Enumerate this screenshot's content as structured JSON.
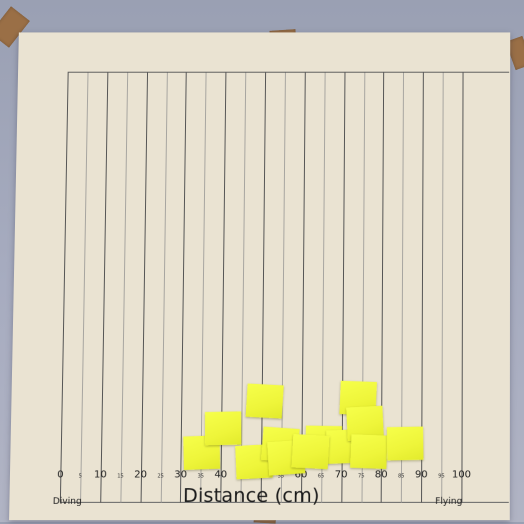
{
  "photo": {
    "description_kind": "photo of a hand-drawn histogram poster with sticky notes",
    "background_color": "#a7acc0",
    "paper_color": "#eae3d2",
    "note_color": "#f3fb3e",
    "tape_color": "#9a6b3d"
  },
  "axis": {
    "title": "Distance (cm)",
    "left_end_label": "Diving",
    "right_end_label": "Flying",
    "major_ticks": [
      "0",
      "10",
      "20",
      "30",
      "40",
      "50",
      "60",
      "70",
      "80",
      "90",
      "100"
    ],
    "minor_ticks": [
      "5",
      "15",
      "25",
      "35",
      "45",
      "55",
      "65",
      "75",
      "85",
      "95"
    ]
  },
  "sticky_notes_count": 13
}
